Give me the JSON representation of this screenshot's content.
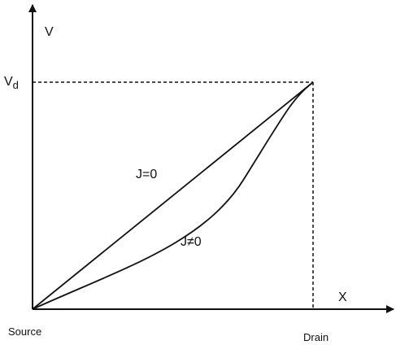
{
  "axes": {
    "y_label": "V",
    "x_label": "X"
  },
  "levels": {
    "drain_voltage": {
      "base": "V",
      "sub": "d"
    }
  },
  "ends": {
    "source": "Source",
    "drain": "Drain"
  },
  "curves": [
    {
      "label": "J=0"
    },
    {
      "label": "J≠0"
    }
  ]
}
